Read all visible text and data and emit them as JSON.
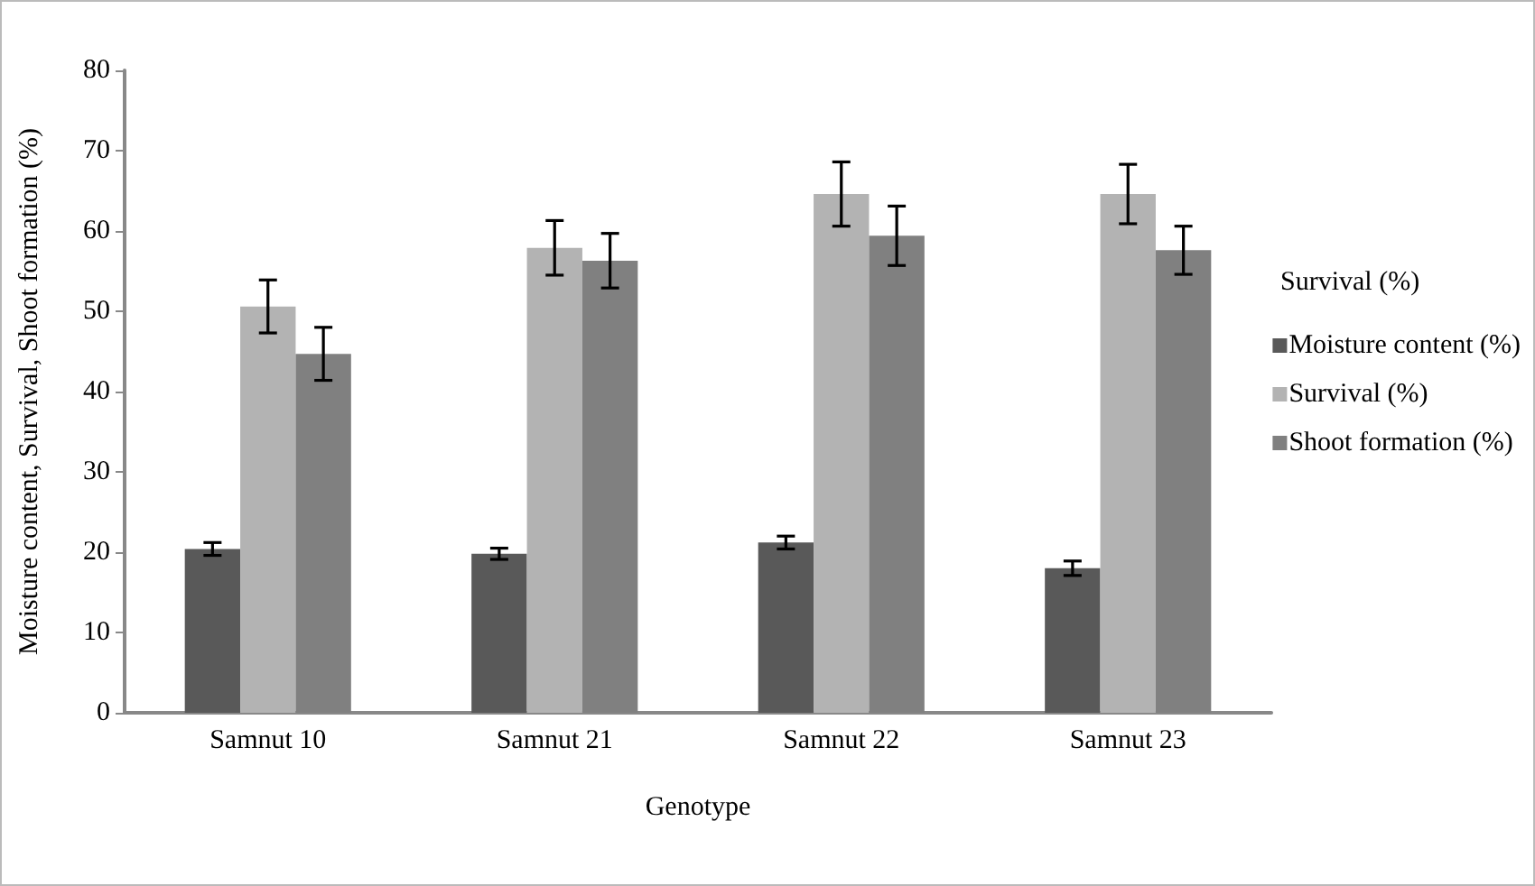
{
  "chart_data": {
    "type": "bar",
    "xlabel": "Genotype",
    "ylabel": "Moisture content, Survival, Shoot formation (%)",
    "categories": [
      "Samnut 10",
      "Samnut 21",
      "Samnut 22",
      "Samnut 23"
    ],
    "series": [
      {
        "name": "Moisture content (%)",
        "color": "#595959",
        "values": [
          20.4,
          19.8,
          21.2,
          18.0
        ],
        "errors": [
          0.8,
          0.7,
          0.8,
          0.9
        ]
      },
      {
        "name": "Survival (%)",
        "color": "#b3b3b3",
        "values": [
          50.6,
          57.9,
          64.6,
          64.6
        ],
        "errors": [
          3.3,
          3.4,
          4.0,
          3.7
        ]
      },
      {
        "name": "Shoot formation (%)",
        "color": "#808080",
        "values": [
          44.7,
          56.3,
          59.4,
          57.6
        ],
        "errors": [
          3.3,
          3.4,
          3.7,
          3.0
        ]
      }
    ],
    "annotations": [
      "Survival (%)"
    ],
    "ylim": [
      0,
      80
    ],
    "yticks": [
      0,
      10,
      20,
      30,
      40,
      50,
      60,
      70,
      80
    ],
    "grid": false,
    "legend": "right"
  }
}
